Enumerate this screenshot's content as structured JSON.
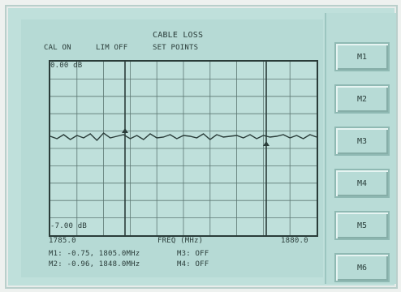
{
  "title": "CABLE LOSS",
  "status": {
    "cal": "CAL ON",
    "lim": "LIM OFF",
    "setpoints": "SET POINTS"
  },
  "plot": {
    "y_top": "0.00 dB",
    "y_bottom": "-7.00 dB",
    "x_left": "1785.0",
    "x_center": "FREQ (MHz)",
    "x_right": "1880.0"
  },
  "markers": {
    "m1": "M1: -0.75, 1805.0MHz",
    "m2": "M2: -0.96, 1848.0MHz",
    "m3": "M3: OFF",
    "m4": "M4: OFF"
  },
  "softkeys": [
    {
      "label": "M1"
    },
    {
      "label": "M2"
    },
    {
      "label": "M3"
    },
    {
      "label": "M4"
    },
    {
      "label": "M5"
    },
    {
      "label": "M6"
    }
  ],
  "colors": {
    "trace": "#2a3c39",
    "grid": "#5e7874"
  }
}
